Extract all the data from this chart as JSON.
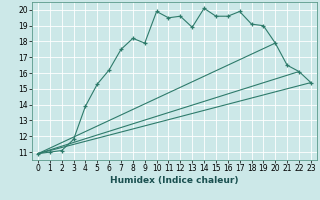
{
  "title": "",
  "xlabel": "Humidex (Indice chaleur)",
  "ylabel": "",
  "background_color": "#cce8e8",
  "grid_color": "#b8d8d8",
  "line_color": "#2e7b6b",
  "xlim": [
    -0.5,
    23.5
  ],
  "ylim": [
    10.5,
    20.5
  ],
  "xticks": [
    0,
    1,
    2,
    3,
    4,
    5,
    6,
    7,
    8,
    9,
    10,
    11,
    12,
    13,
    14,
    15,
    16,
    17,
    18,
    19,
    20,
    21,
    22,
    23
  ],
  "yticks": [
    11,
    12,
    13,
    14,
    15,
    16,
    17,
    18,
    19,
    20
  ],
  "series": [
    [
      0,
      10.9
    ],
    [
      1,
      11.0
    ],
    [
      2,
      11.1
    ],
    [
      3,
      11.8
    ],
    [
      4,
      13.9
    ],
    [
      5,
      15.3
    ],
    [
      6,
      16.2
    ],
    [
      7,
      17.5
    ],
    [
      8,
      18.2
    ],
    [
      9,
      17.9
    ],
    [
      10,
      19.9
    ],
    [
      11,
      19.5
    ],
    [
      12,
      19.6
    ],
    [
      13,
      18.9
    ],
    [
      14,
      20.1
    ],
    [
      15,
      19.6
    ],
    [
      16,
      19.6
    ],
    [
      17,
      19.9
    ],
    [
      18,
      19.1
    ],
    [
      19,
      19.0
    ],
    [
      20,
      17.9
    ],
    [
      21,
      16.5
    ],
    [
      22,
      16.1
    ],
    [
      23,
      15.4
    ]
  ],
  "series2": [
    [
      0,
      10.9
    ],
    [
      22,
      16.1
    ]
  ],
  "series3": [
    [
      0,
      10.9
    ],
    [
      20,
      17.9
    ]
  ],
  "series4": [
    [
      0,
      10.9
    ],
    [
      23,
      15.4
    ]
  ]
}
